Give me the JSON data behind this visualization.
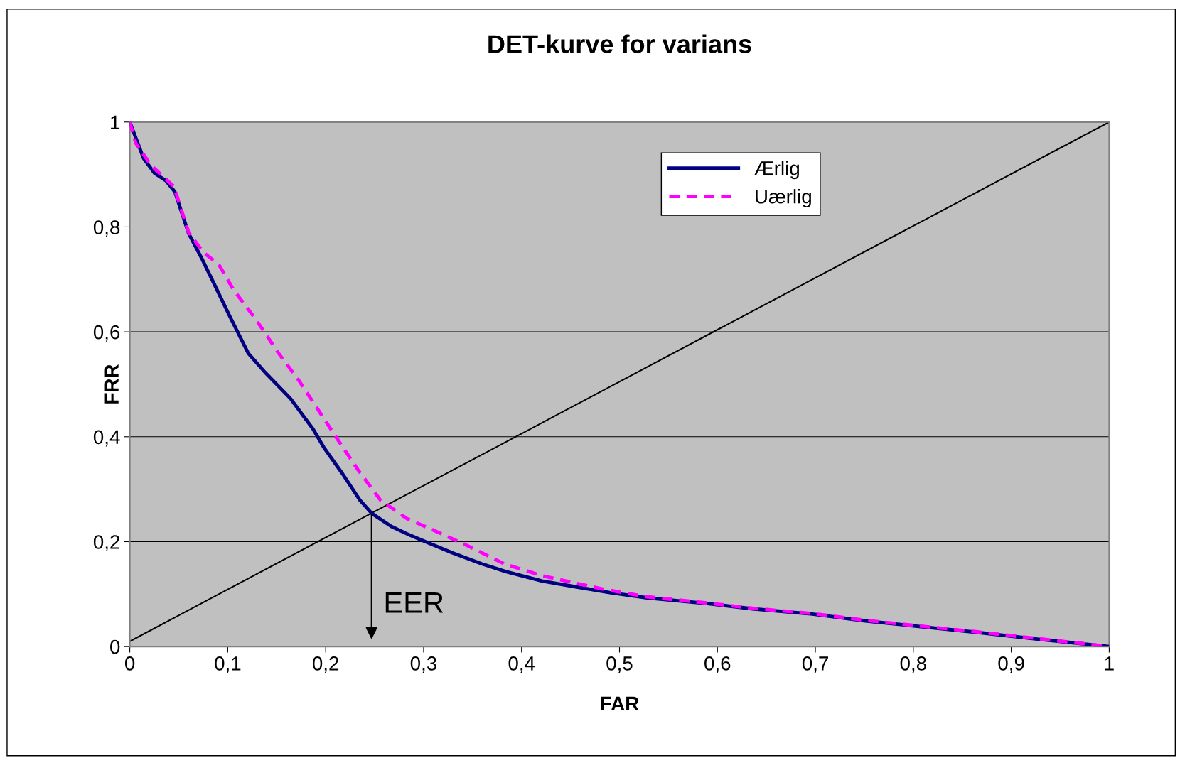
{
  "chart_data": {
    "type": "line",
    "title": "DET-kurve for varians",
    "xlabel": "FAR",
    "ylabel": "FRR",
    "xlim": [
      0,
      1
    ],
    "ylim": [
      0,
      1
    ],
    "xticks": [
      0,
      {
        "value": 0.1,
        "label": "0,1"
      },
      {
        "value": 0.2,
        "label": "0,2"
      },
      {
        "value": 0.3,
        "label": "0,3"
      },
      {
        "value": 0.4,
        "label": "0,4"
      },
      {
        "value": 0.5,
        "label": "0,5"
      },
      {
        "value": 0.6,
        "label": "0,6"
      },
      {
        "value": 0.7,
        "label": "0,7"
      },
      {
        "value": 0.8,
        "label": "0,8"
      },
      {
        "value": 0.9,
        "label": "0,9"
      },
      1
    ],
    "yticks": [
      0,
      {
        "value": 0.2,
        "label": "0,2"
      },
      {
        "value": 0.4,
        "label": "0,4"
      },
      {
        "value": 0.6,
        "label": "0,6"
      },
      {
        "value": 0.8,
        "label": "0,8"
      },
      1
    ],
    "grid": "y",
    "legend": "top right",
    "series": [
      {
        "name": "Ærlig",
        "color": "#000080",
        "line_style": "solid",
        "x": [
          0,
          0.014,
          0.025,
          0.037,
          0.046,
          0.06,
          0.074,
          0.087,
          0.102,
          0.121,
          0.138,
          0.164,
          0.187,
          0.198,
          0.217,
          0.235,
          0.247,
          0.267,
          0.283,
          0.298,
          0.329,
          0.359,
          0.384,
          0.421,
          0.452,
          0.49,
          0.528,
          0.59,
          0.636,
          0.697,
          0.751,
          0.813,
          0.866,
          0.928,
          1
        ],
        "values": [
          1.0,
          0.931,
          0.903,
          0.888,
          0.867,
          0.788,
          0.738,
          0.688,
          0.63,
          0.559,
          0.523,
          0.473,
          0.415,
          0.38,
          0.33,
          0.279,
          0.254,
          0.229,
          0.215,
          0.203,
          0.179,
          0.158,
          0.143,
          0.125,
          0.115,
          0.103,
          0.093,
          0.082,
          0.072,
          0.062,
          0.049,
          0.037,
          0.027,
          0.014,
          0
        ]
      },
      {
        "name": "Uærlig",
        "color": "#ff00ff",
        "line_style": "dashed",
        "x": [
          0,
          0.006,
          0.022,
          0.045,
          0.06,
          0.075,
          0.091,
          0.106,
          0.129,
          0.152,
          0.172,
          0.19,
          0.21,
          0.233,
          0.256,
          0.283,
          0.31,
          0.344,
          0.382,
          0.421,
          0.482,
          0.528,
          0.59,
          0.636,
          0.697,
          0.751,
          0.813,
          0.866,
          0.928,
          1
        ],
        "values": [
          1.0,
          0.96,
          0.917,
          0.877,
          0.79,
          0.752,
          0.728,
          0.68,
          0.623,
          0.559,
          0.509,
          0.458,
          0.401,
          0.337,
          0.279,
          0.244,
          0.222,
          0.193,
          0.158,
          0.135,
          0.11,
          0.095,
          0.083,
          0.073,
          0.063,
          0.05,
          0.038,
          0.028,
          0.015,
          0
        ]
      },
      {
        "color": "#000000",
        "line_style": "solid",
        "x": [
          0,
          1
        ],
        "values": [
          0.01,
          1
        ]
      }
    ],
    "annotations": [
      "EER"
    ]
  }
}
